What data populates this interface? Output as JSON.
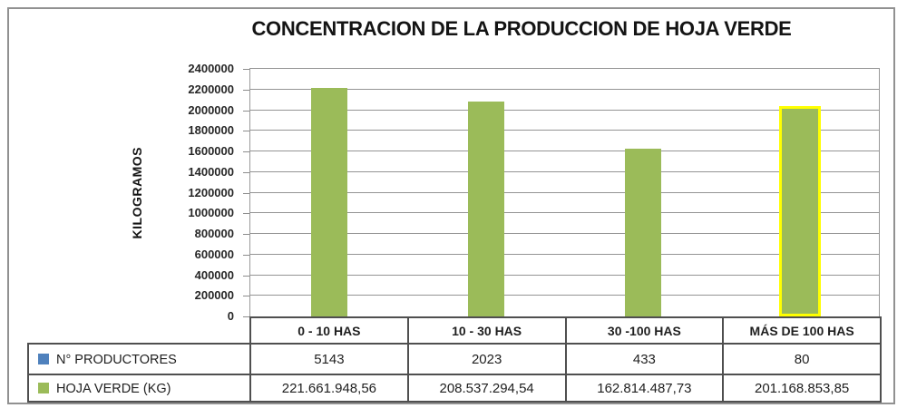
{
  "window": {
    "background": "#ffffff",
    "frame_border_color": "#919191"
  },
  "chart_data": {
    "type": "bar",
    "title": "CONCENTRACION DE LA PRODUCCION DE HOJA VERDE",
    "ylabel": "KILOGRAMOS",
    "xlabel": "",
    "categories": [
      "0 - 10 HAS",
      "10 - 30 HAS",
      "30 -100 HAS",
      "MÁS DE 100 HAS"
    ],
    "y_axis": {
      "min": 0,
      "max": 2400000,
      "tick_step": 200000,
      "gridlines": true
    },
    "bars": {
      "series_name": "HOJA VERDE (KG)",
      "color": "#9BBB59",
      "plotted_values": [
        2216619,
        2085373,
        1628145,
        2011689
      ]
    },
    "highlight": {
      "bar_index": 3,
      "color": "#FFFF00"
    },
    "data_table": {
      "rows": [
        {
          "label": "N° PRODUCTORES",
          "marker_color": "#4F81BD",
          "values": [
            "5143",
            "2023",
            "433",
            "80"
          ]
        },
        {
          "label": "HOJA VERDE  (KG)",
          "marker_color": "#9BBB59",
          "values": [
            "221.661.948,56",
            "208.537.294,54",
            "162.814.487,73",
            "201.168.853,85"
          ]
        }
      ]
    }
  }
}
